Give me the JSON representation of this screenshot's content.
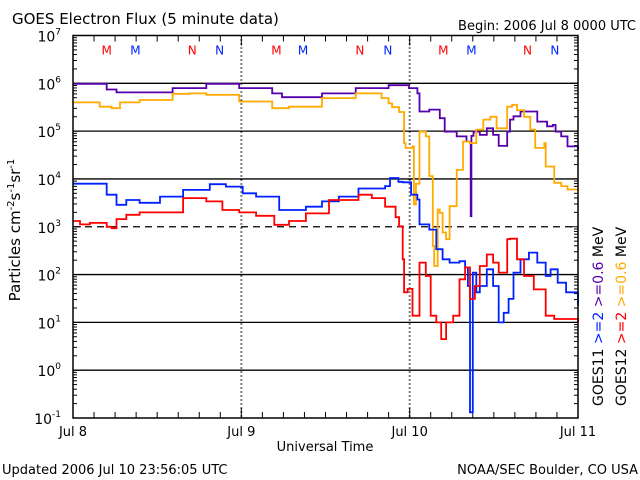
{
  "chart_data": {
    "type": "line",
    "title": "GOES Electron Flux (5 minute data)",
    "subtitle": "Begin: 2006 Jul 8 0000 UTC",
    "xlabel": "Universal Time",
    "ylabel": "Particles cm-2s-1sr-1",
    "ylabel_parts": {
      "base": "Particles cm",
      "e1": "-2",
      "s": "s",
      "e2": "-1",
      "sr": "sr",
      "e3": "-1"
    },
    "x_unit": "hours since 2006 Jul 8 0000 UTC",
    "xlim": [
      0,
      72
    ],
    "x_ticks": [
      {
        "value": 0,
        "label": "Jul 8"
      },
      {
        "value": 24,
        "label": "Jul 9"
      },
      {
        "value": 48,
        "label": "Jul 10"
      },
      {
        "value": 72,
        "label": "Jul 11"
      }
    ],
    "yscale": "log",
    "ylim_log10": [
      -1,
      7
    ],
    "y_ticks_log10": [
      7,
      6,
      5,
      4,
      3,
      2,
      1,
      0,
      -1
    ],
    "y_tick_base": "10",
    "grid_log10": [
      6,
      5,
      4,
      3,
      2,
      1,
      0
    ],
    "dashed_grid_log10": [
      3
    ],
    "series": [
      {
        "name": ">=0.6",
        "satellite": "GOES11",
        "color": "#5500aa",
        "points": [
          [
            0,
            5.99
          ],
          [
            4.8,
            5.87
          ],
          [
            6.2,
            5.81
          ],
          [
            9.5,
            5.81
          ],
          [
            14.2,
            5.9
          ],
          [
            19,
            5.99
          ],
          [
            21.3,
            5.99
          ],
          [
            23.7,
            5.9
          ],
          [
            28.4,
            5.79
          ],
          [
            29.8,
            5.71
          ],
          [
            33.2,
            5.71
          ],
          [
            35.5,
            5.79
          ],
          [
            40.3,
            5.9
          ],
          [
            45,
            5.96
          ],
          [
            47.2,
            5.96
          ],
          [
            47.9,
            5.9
          ],
          [
            49.1,
            5.79
          ],
          [
            49.4,
            5.41
          ],
          [
            50.8,
            5.45
          ],
          [
            52.3,
            5.27
          ],
          [
            53,
            4.99
          ],
          [
            54.7,
            4.89
          ],
          [
            56.1,
            4.78
          ],
          [
            56.6,
            4.75
          ],
          [
            56.7,
            3.22
          ],
          [
            56.8,
            4.9
          ],
          [
            57.1,
            4.99
          ],
          [
            58,
            4.92
          ],
          [
            59,
            5.06
          ],
          [
            59.9,
            4.92
          ],
          [
            60.7,
            4.69
          ],
          [
            61.9,
            4.99
          ],
          [
            62.3,
            5.24
          ],
          [
            62.8,
            5.31
          ],
          [
            63.8,
            5.41
          ],
          [
            65.5,
            5.41
          ],
          [
            66.2,
            5.2
          ],
          [
            67.6,
            5.1
          ],
          [
            68.4,
            5.13
          ],
          [
            68.8,
            4.99
          ],
          [
            69.6,
            4.89
          ],
          [
            70.5,
            4.68
          ],
          [
            72,
            4.61
          ]
        ]
      },
      {
        "name": ">=0.6",
        "satellite": "GOES12",
        "color": "#ffaa00",
        "points": [
          [
            0,
            5.6
          ],
          [
            3.8,
            5.51
          ],
          [
            5.5,
            5.48
          ],
          [
            6.7,
            5.6
          ],
          [
            9.5,
            5.65
          ],
          [
            14.2,
            5.78
          ],
          [
            16.6,
            5.79
          ],
          [
            19,
            5.76
          ],
          [
            23.7,
            5.62
          ],
          [
            28.4,
            5.48
          ],
          [
            30.8,
            5.51
          ],
          [
            35.5,
            5.69
          ],
          [
            40.3,
            5.79
          ],
          [
            42.6,
            5.79
          ],
          [
            44,
            5.69
          ],
          [
            45,
            5.58
          ],
          [
            45.5,
            5.5
          ],
          [
            46.5,
            5.4
          ],
          [
            47.2,
            4.75
          ],
          [
            47.4,
            4.65
          ],
          [
            48.4,
            4.68
          ],
          [
            48.6,
            3.47
          ],
          [
            48.9,
            3.9
          ],
          [
            49.4,
            4.99
          ],
          [
            50.3,
            4.89
          ],
          [
            50.8,
            4.06
          ],
          [
            51.3,
            2.6
          ],
          [
            51.5,
            2.18
          ],
          [
            52,
            3.36
          ],
          [
            52.3,
            3.29
          ],
          [
            52.7,
            2.88
          ],
          [
            53.2,
            2.74
          ],
          [
            53.7,
            3.43
          ],
          [
            54.7,
            4.19
          ],
          [
            55.6,
            4.78
          ],
          [
            56.6,
            4.75
          ],
          [
            57.5,
            5.03
          ],
          [
            58.5,
            5.24
          ],
          [
            59.5,
            5.3
          ],
          [
            60.4,
            5.06
          ],
          [
            61.9,
            5.51
          ],
          [
            62.6,
            5.55
          ],
          [
            63.3,
            5.44
          ],
          [
            64.3,
            5.3
          ],
          [
            65.2,
            5.03
          ],
          [
            65.9,
            4.65
          ],
          [
            67.2,
            4.75
          ],
          [
            67.4,
            4.26
          ],
          [
            68.6,
            3.92
          ],
          [
            69.6,
            3.85
          ],
          [
            70.5,
            3.78
          ],
          [
            72,
            3.79
          ]
        ]
      },
      {
        "name": ">=2",
        "satellite": "GOES11",
        "color": "#0022ff",
        "points": [
          [
            0,
            3.9
          ],
          [
            4.8,
            3.67
          ],
          [
            6.2,
            3.46
          ],
          [
            7.6,
            3.56
          ],
          [
            9.5,
            3.5
          ],
          [
            12.4,
            3.63
          ],
          [
            15.7,
            3.77
          ],
          [
            19.5,
            3.89
          ],
          [
            21.8,
            3.84
          ],
          [
            24.2,
            3.7
          ],
          [
            26.1,
            3.63
          ],
          [
            29.4,
            3.35
          ],
          [
            33.2,
            3.42
          ],
          [
            35.5,
            3.53
          ],
          [
            37.9,
            3.63
          ],
          [
            40.7,
            3.8
          ],
          [
            44.5,
            3.85
          ],
          [
            45.2,
            4.02
          ],
          [
            46.4,
            3.94
          ],
          [
            47,
            3.93
          ],
          [
            48.2,
            3.67
          ],
          [
            49.1,
            3.57
          ],
          [
            49.4,
            3.05
          ],
          [
            50.8,
            2.94
          ],
          [
            51.8,
            2.53
          ],
          [
            52.7,
            2.32
          ],
          [
            53.7,
            2.25
          ],
          [
            55.1,
            2.28
          ],
          [
            55.9,
            2.15
          ],
          [
            56.3,
            1.76
          ],
          [
            56.6,
            -0.88
          ],
          [
            57,
            2.04
          ],
          [
            57.5,
            1.63
          ],
          [
            58,
            1.76
          ],
          [
            59,
            2.11
          ],
          [
            59.9,
            1.76
          ],
          [
            60.7,
            1.0
          ],
          [
            61.4,
            1.2
          ],
          [
            62.1,
            1.49
          ],
          [
            62.8,
            2.04
          ],
          [
            63.8,
            2.32
          ],
          [
            65,
            2.46
          ],
          [
            66.2,
            2.25
          ],
          [
            67.4,
            1.97
          ],
          [
            68.1,
            2.11
          ],
          [
            69.1,
            1.83
          ],
          [
            70.3,
            1.63
          ],
          [
            72,
            1.35
          ]
        ]
      },
      {
        "name": ">=2",
        "satellite": "GOES12",
        "color": "#ff0000",
        "points": [
          [
            0,
            3.12
          ],
          [
            1,
            3.05
          ],
          [
            2.4,
            3.08
          ],
          [
            4.8,
            3.0
          ],
          [
            5.5,
            2.97
          ],
          [
            6.2,
            3.16
          ],
          [
            7.6,
            3.25
          ],
          [
            9.5,
            3.3
          ],
          [
            15.7,
            3.6
          ],
          [
            19,
            3.53
          ],
          [
            21.3,
            3.35
          ],
          [
            23.7,
            3.3
          ],
          [
            26.1,
            3.23
          ],
          [
            28.7,
            3.04
          ],
          [
            30.8,
            3.12
          ],
          [
            33.2,
            3.28
          ],
          [
            36.5,
            3.56
          ],
          [
            40.7,
            3.67
          ],
          [
            42.6,
            3.6
          ],
          [
            44.5,
            3.42
          ],
          [
            46,
            3.2
          ],
          [
            46.5,
            3.01
          ],
          [
            47,
            2.32
          ],
          [
            47.2,
            1.63
          ],
          [
            47.7,
            1.7
          ],
          [
            48.4,
            1.14
          ],
          [
            49.4,
            2.25
          ],
          [
            50.3,
            1.97
          ],
          [
            51,
            1.14
          ],
          [
            51.8,
            1.0
          ],
          [
            52.5,
            0.65
          ],
          [
            53.2,
            1.0
          ],
          [
            54.2,
            1.14
          ],
          [
            55.1,
            1.9
          ],
          [
            55.9,
            2.15
          ],
          [
            56.6,
            1.49
          ],
          [
            57.3,
            1.76
          ],
          [
            58,
            2.18
          ],
          [
            59,
            2.42
          ],
          [
            59.9,
            2.25
          ],
          [
            60.7,
            2.04
          ],
          [
            61.9,
            2.74
          ],
          [
            62.3,
            2.75
          ],
          [
            63.3,
            2.32
          ],
          [
            64.3,
            1.97
          ],
          [
            65.7,
            1.69
          ],
          [
            66.7,
            1.69
          ],
          [
            67.4,
            1.14
          ],
          [
            68.6,
            1.07
          ],
          [
            70,
            1.07
          ],
          [
            72,
            1.0
          ]
        ]
      }
    ],
    "annotations": [
      {
        "label": "M",
        "hour": 4.8,
        "color": "#ff0000"
      },
      {
        "label": "M",
        "hour": 8.9,
        "color": "#0022ff"
      },
      {
        "label": "N",
        "hour": 17.0,
        "color": "#ff0000"
      },
      {
        "label": "N",
        "hour": 20.9,
        "color": "#0022ff"
      },
      {
        "label": "M",
        "hour": 29.0,
        "color": "#ff0000"
      },
      {
        "label": "M",
        "hour": 32.8,
        "color": "#0022ff"
      },
      {
        "label": "N",
        "hour": 40.9,
        "color": "#ff0000"
      },
      {
        "label": "N",
        "hour": 44.9,
        "color": "#0022ff"
      },
      {
        "label": "M",
        "hour": 52.8,
        "color": "#ff0000"
      },
      {
        "label": "M",
        "hour": 56.8,
        "color": "#0022ff"
      },
      {
        "label": "N",
        "hour": 64.8,
        "color": "#ff0000"
      },
      {
        "label": "N",
        "hour": 68.7,
        "color": "#0022ff"
      }
    ],
    "legend": {
      "placement": "right",
      "columns": [
        {
          "satellite": "GOES11",
          "entries": [
            {
              "label": ">=2",
              "color": "#0022ff"
            },
            {
              "label": ">=0.6",
              "color": "#5500aa"
            }
          ],
          "unit": "MeV"
        },
        {
          "satellite": "GOES12",
          "entries": [
            {
              "label": ">=2",
              "color": "#ff0000"
            },
            {
              "label": ">=0.6",
              "color": "#ffaa00"
            }
          ],
          "unit": "MeV"
        }
      ]
    }
  },
  "footer": {
    "updated": "Updated 2006 Jul 10 23:56:05 UTC",
    "source": "NOAA/SEC Boulder, CO USA"
  }
}
